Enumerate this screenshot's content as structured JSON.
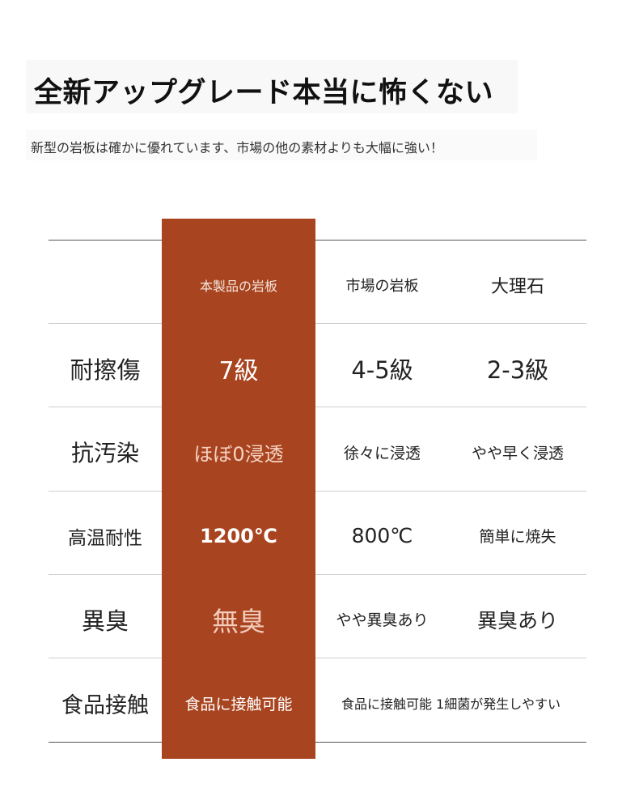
{
  "title": "全新アップグレード本当に怖くない",
  "subtitle": "新型の岩板は確かに優れています、市場の他の素材よりも大幅に強い！",
  "colors": {
    "highlight_column": "#a8441f",
    "text": "#222222",
    "highlight_soft_text": "#f6d2c2"
  },
  "table": {
    "headers": [
      "",
      "本製品の岩板",
      "市場の岩板",
      "大理石"
    ],
    "rows": [
      {
        "label": "耐擦傷",
        "ours": "7級",
        "market": "4-5級",
        "marble": "2-3級"
      },
      {
        "label": "抗汚染",
        "ours": "ほぼ0浸透",
        "market": "徐々に浸透",
        "marble": "やや早く浸透"
      },
      {
        "label": "高温耐性",
        "ours": "1200℃",
        "market": "800℃",
        "marble": "簡単に焼失"
      },
      {
        "label": "異臭",
        "ours": "無臭",
        "market": "やや異臭あり",
        "marble": "異臭あり"
      },
      {
        "label": "食品接触",
        "ours": "食品に接触可能",
        "others": "食品に接触可能 1細菌が発生しやすい"
      }
    ]
  }
}
